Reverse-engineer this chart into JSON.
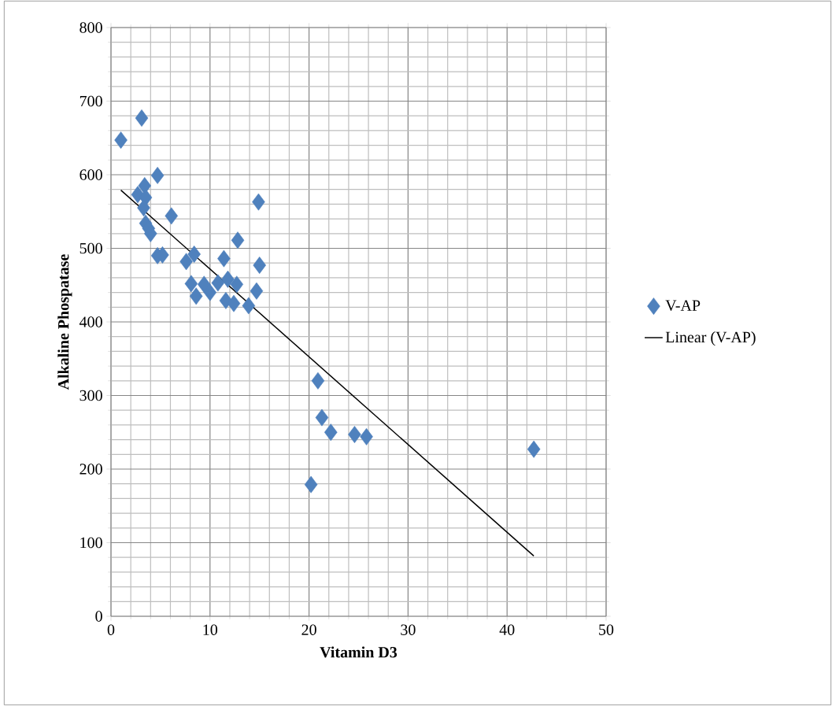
{
  "chart_data": {
    "type": "scatter",
    "xlabel": "Vitamin D3",
    "ylabel": "Alkaline Phospatase",
    "xlim": [
      0,
      50
    ],
    "ylim": [
      0,
      800
    ],
    "xticks": [
      0,
      10,
      20,
      30,
      40,
      50
    ],
    "yticks": [
      0,
      100,
      200,
      300,
      400,
      500,
      600,
      700,
      800
    ],
    "grid": true,
    "legend": "right",
    "series": [
      {
        "name": "V-AP",
        "marker": "diamond",
        "color": "#4f81bd",
        "x": [
          1.0,
          3.1,
          4.7,
          3.4,
          2.7,
          3.5,
          3.3,
          6.1,
          3.5,
          3.8,
          4.0,
          4.7,
          5.2,
          12.8,
          8.4,
          7.6,
          11.4,
          15.0,
          8.1,
          9.4,
          10.8,
          11.8,
          12.7,
          14.7,
          8.6,
          10.0,
          11.6,
          12.4,
          13.9,
          14.9,
          20.9,
          21.3,
          22.2,
          24.6,
          25.8,
          20.2,
          42.7
        ],
        "values": [
          647,
          677,
          599,
          585,
          573,
          569,
          555,
          544,
          534,
          527,
          520,
          490,
          491,
          511,
          492,
          482,
          486,
          477,
          452,
          451,
          453,
          458,
          451,
          442,
          435,
          440,
          429,
          425,
          422,
          563,
          320,
          270,
          250,
          247,
          244,
          179,
          227
        ]
      },
      {
        "name": "Linear (V-AP)",
        "type": "line",
        "marker": "none",
        "line_style": "solid",
        "color": "#000000",
        "x": [
          1.0,
          42.7
        ],
        "values": [
          579,
          82
        ]
      }
    ]
  }
}
